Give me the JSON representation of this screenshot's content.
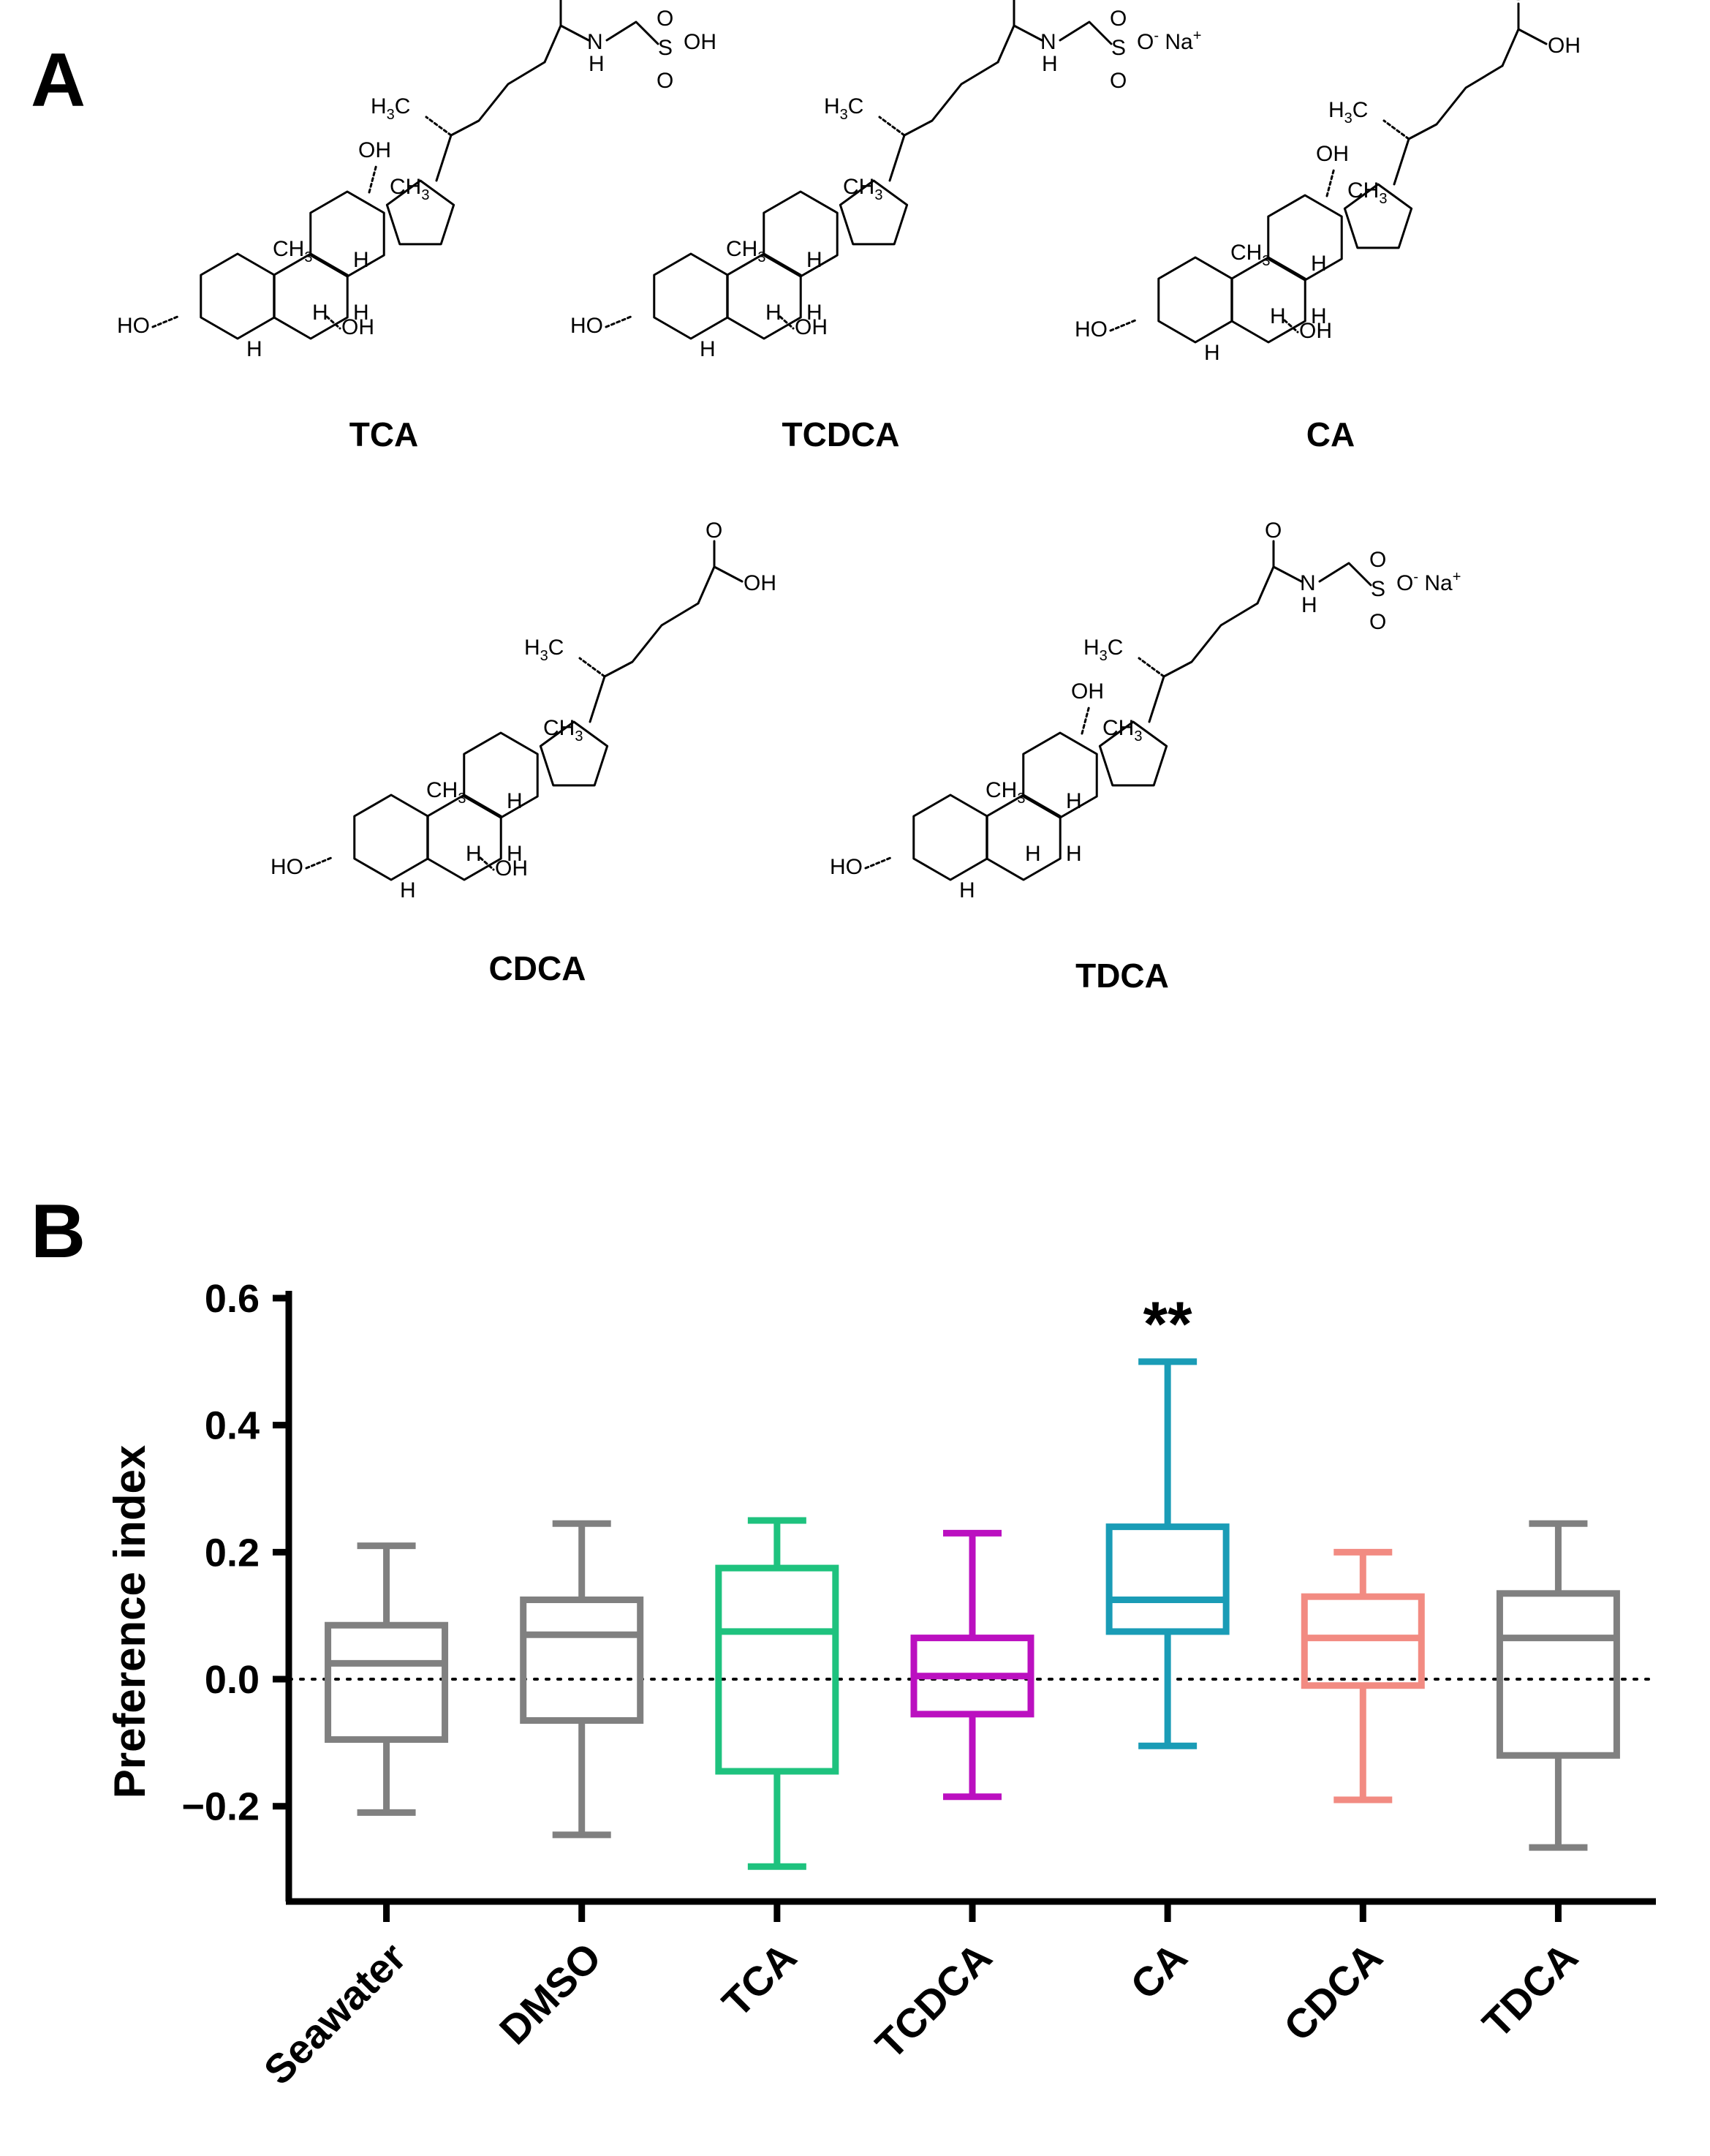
{
  "panel_a": {
    "label": "A",
    "compounds": [
      {
        "name": "TCA",
        "tail": "taurine",
        "oh12": true,
        "oh7": true
      },
      {
        "name": "TCDCA",
        "tail": "taurine-na",
        "oh12": false,
        "oh7": true
      },
      {
        "name": "CA",
        "tail": "acid",
        "oh12": true,
        "oh7": true
      },
      {
        "name": "CDCA",
        "tail": "acid",
        "oh12": false,
        "oh7": true
      },
      {
        "name": "TDCA",
        "tail": "taurine-na",
        "oh12": true,
        "oh7": false
      }
    ],
    "atoms": {
      "O": "O",
      "OH": "OH",
      "HO": "HO",
      "H": "H",
      "N": "N",
      "S": "S",
      "CH": "CH",
      "three": "3",
      "minus": "-",
      "Na": "Na",
      "plus": "+"
    }
  },
  "panel_b": {
    "label": "B"
  },
  "chart_data": {
    "type": "boxplot",
    "title": "",
    "xlabel": "",
    "ylabel": "Preference index",
    "ylim": [
      -0.35,
      0.6
    ],
    "yticks": [
      0.6,
      0.4,
      0.2,
      0.0,
      -0.2
    ],
    "ytick_labels": [
      "0.6",
      "0.4",
      "0.2",
      "0.0",
      "−0.2"
    ],
    "reference_line": 0.0,
    "categories": [
      "Seawater",
      "DMSO",
      "TCA",
      "TCDCA",
      "CA",
      "CDCA",
      "TDCA"
    ],
    "boxes": [
      {
        "category": "Seawater",
        "min": -0.21,
        "q1": -0.095,
        "median": 0.025,
        "q3": 0.085,
        "max": 0.21,
        "color": "#808080"
      },
      {
        "category": "DMSO",
        "min": -0.245,
        "q1": -0.065,
        "median": 0.07,
        "q3": 0.125,
        "max": 0.245,
        "color": "#808080"
      },
      {
        "category": "TCA",
        "min": -0.295,
        "q1": -0.145,
        "median": 0.075,
        "q3": 0.175,
        "max": 0.25,
        "color": "#1ec27e"
      },
      {
        "category": "TCDCA",
        "min": -0.185,
        "q1": -0.055,
        "median": 0.005,
        "q3": 0.065,
        "max": 0.23,
        "color": "#bb10c0"
      },
      {
        "category": "CA",
        "min": -0.105,
        "q1": 0.075,
        "median": 0.125,
        "q3": 0.24,
        "max": 0.5,
        "color": "#1a9cb6"
      },
      {
        "category": "CDCA",
        "min": -0.19,
        "q1": -0.01,
        "median": 0.065,
        "q3": 0.13,
        "max": 0.2,
        "color": "#f28b82"
      },
      {
        "category": "TDCA",
        "min": -0.265,
        "q1": -0.12,
        "median": 0.065,
        "q3": 0.135,
        "max": 0.245,
        "color": "#808080"
      }
    ],
    "annotations": [
      {
        "category": "CA",
        "text": "**"
      }
    ]
  }
}
